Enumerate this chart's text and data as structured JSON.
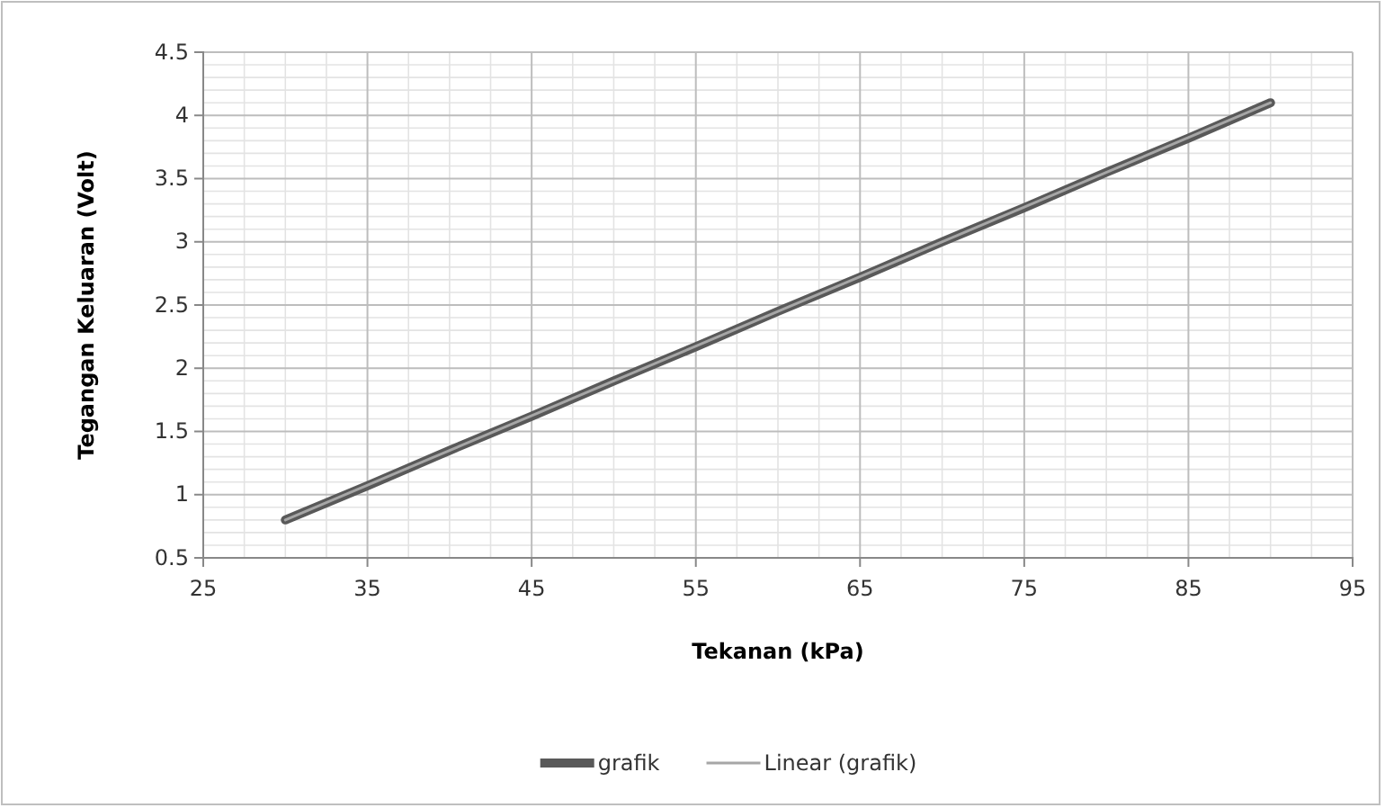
{
  "chart_data": {
    "type": "line",
    "xlabel": "Tekanan (kPa)",
    "ylabel": "Tegangan Keluaran (Volt)",
    "x": [
      30,
      35,
      40,
      45,
      50,
      55,
      60,
      65,
      70,
      75,
      80,
      85,
      90
    ],
    "series": [
      {
        "name": "grafik",
        "color": "#595959",
        "values": [
          0.8,
          1.07,
          1.35,
          1.62,
          1.9,
          2.17,
          2.45,
          2.72,
          3.0,
          3.27,
          3.55,
          3.82,
          4.1
        ]
      },
      {
        "name": "Linear (grafik)",
        "color": "#a6a6a6",
        "x": [
          30,
          90
        ],
        "values": [
          0.8,
          4.1
        ]
      }
    ],
    "xlim": [
      25,
      95
    ],
    "xticks": [
      25,
      35,
      45,
      55,
      65,
      75,
      85,
      95
    ],
    "ylim": [
      0.5,
      4.5
    ],
    "yticks": [
      0.5,
      1,
      1.5,
      2,
      2.5,
      3,
      3.5,
      4,
      4.5
    ],
    "grid": true,
    "legend": "bottom",
    "marker": "none",
    "line_style": "solid"
  }
}
